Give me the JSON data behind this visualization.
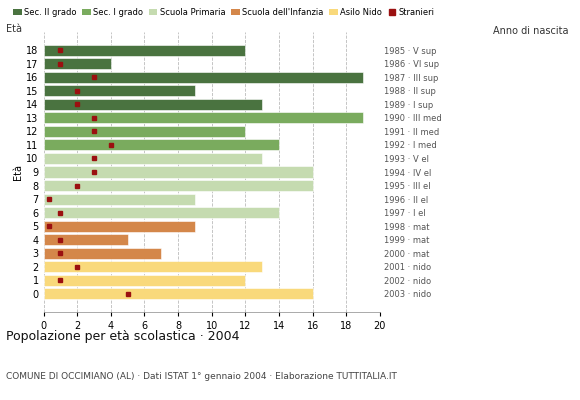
{
  "ages": [
    18,
    17,
    16,
    15,
    14,
    13,
    12,
    11,
    10,
    9,
    8,
    7,
    6,
    5,
    4,
    3,
    2,
    1,
    0
  ],
  "years": [
    "1985 · V sup",
    "1986 · VI sup",
    "1987 · III sup",
    "1988 · II sup",
    "1989 · I sup",
    "1990 · III med",
    "1991 · II med",
    "1992 · I med",
    "1993 · V el",
    "1994 · IV el",
    "1995 · III el",
    "1996 · II el",
    "1997 · I el",
    "1998 · mat",
    "1999 · mat",
    "2000 · mat",
    "2001 · nido",
    "2002 · nido",
    "2003 · nido"
  ],
  "values": [
    12,
    4,
    19,
    9,
    13,
    19,
    12,
    14,
    13,
    16,
    16,
    9,
    14,
    9,
    5,
    7,
    13,
    12,
    16
  ],
  "stranieri": [
    1,
    1,
    3,
    2,
    2,
    3,
    3,
    4,
    3,
    3,
    2,
    0.3,
    1,
    0.3,
    1,
    1,
    2,
    1,
    5
  ],
  "categories": {
    "sec2": [
      18,
      17,
      16,
      15,
      14
    ],
    "sec1": [
      13,
      12,
      11
    ],
    "primaria": [
      10,
      9,
      8,
      7,
      6
    ],
    "infanzia": [
      5,
      4,
      3
    ],
    "nido": [
      2,
      1,
      0
    ]
  },
  "colors": {
    "sec2": "#4a7340",
    "sec1": "#7aab5e",
    "primaria": "#c5dbb0",
    "infanzia": "#d4874a",
    "nido": "#f9d97b",
    "stranieri": "#9b1010",
    "grid": "#aaaaaa",
    "bg": "#ffffff"
  },
  "legend_labels": [
    "Sec. II grado",
    "Sec. I grado",
    "Scuola Primaria",
    "Scuola dell'Infanzia",
    "Asilo Nido",
    "Stranieri"
  ],
  "title": "Popolazione per età scolastica · 2004",
  "subtitle": "COMUNE DI OCCIMIANO (AL) · Dati ISTAT 1° gennaio 2004 · Elaborazione TUTTITALIA.IT",
  "ylabel_left": "Età",
  "ylabel_right": "Anno di nascita",
  "xlim": [
    0,
    20
  ],
  "xticks": [
    0,
    2,
    4,
    6,
    8,
    10,
    12,
    14,
    16,
    18,
    20
  ]
}
